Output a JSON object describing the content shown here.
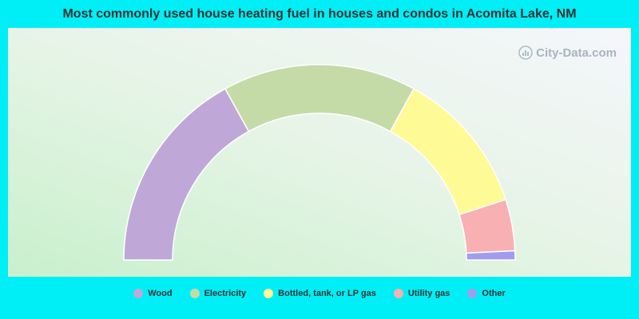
{
  "chart_data": {
    "type": "pie",
    "variant": "half-donut",
    "title": "Most commonly used house heating fuel in houses and condos in Acomita Lake, NM",
    "series": [
      {
        "name": "Wood",
        "value": 34.0,
        "color": "#bfa8d8"
      },
      {
        "name": "Electricity",
        "value": 32.0,
        "color": "#c4dba8"
      },
      {
        "name": "Bottled, tank, or LP gas",
        "value": 24.0,
        "color": "#fefa96"
      },
      {
        "name": "Utility gas",
        "value": 8.5,
        "color": "#f8b0b2"
      },
      {
        "name": "Other",
        "value": 1.5,
        "color": "#a29cee"
      }
    ],
    "legend_position": "bottom"
  },
  "watermark": "City-Data.com"
}
